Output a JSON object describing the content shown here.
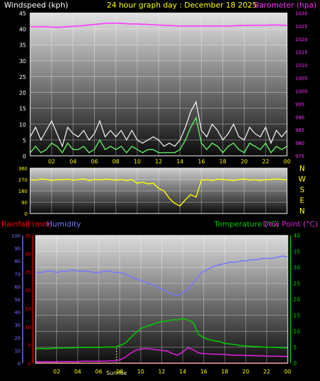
{
  "header": {
    "left": "Windspeed (kph)",
    "center": "24 hour graph day : December 18 2025",
    "right": "Barometer (hpa)"
  },
  "colors": {
    "background": "#000000",
    "frame": "#ffffff",
    "grid": "#ffffff",
    "wind_label": "#ffffff",
    "title": "#ffff00",
    "barometer": "#ff33ff",
    "wind_gust": "#ffffff",
    "wind_avg": "#66ee66",
    "direction": "#ffff00",
    "rain": "#ff0000",
    "humidity": "#7777ff",
    "temperature": "#00cc00",
    "dewpoint": "#dd22dd",
    "sunrise": "#ffff88"
  },
  "chart_data": [
    {
      "type": "line",
      "id": "wind-barometer",
      "title": "24 hour graph day : December 18 2025",
      "ylabel": "Windspeed (kph)",
      "y2label": "Barometer (hpa)",
      "x_ticks": [
        "02",
        "04",
        "06",
        "08",
        "10",
        "12",
        "14",
        "16",
        "18",
        "20",
        "22",
        "00"
      ],
      "ylim": [
        0,
        45
      ],
      "y_ticks": [
        0,
        5,
        10,
        15,
        20,
        25,
        30,
        35,
        40,
        45
      ],
      "y2lim": [
        975,
        1030
      ],
      "y2_ticks": [
        975,
        980,
        985,
        990,
        995,
        1000,
        1005,
        1010,
        1015,
        1020,
        1025,
        1030
      ],
      "x_hours": [
        0,
        0.5,
        1,
        1.5,
        2,
        2.5,
        3,
        3.5,
        4,
        4.5,
        5,
        5.5,
        6,
        6.5,
        7,
        7.5,
        8,
        8.5,
        9,
        9.5,
        10,
        10.5,
        11,
        11.5,
        12,
        12.5,
        13,
        13.5,
        14,
        14.5,
        15,
        15.5,
        16,
        16.5,
        17,
        17.5,
        18,
        18.5,
        19,
        19.5,
        20,
        20.5,
        21,
        21.5,
        22,
        22.5,
        23,
        23.5,
        24
      ],
      "series": [
        {
          "key": "gust",
          "values": [
            6,
            9,
            5,
            8,
            11,
            7,
            3,
            9,
            7,
            6,
            8,
            5,
            7,
            11,
            6,
            8,
            6,
            8,
            5,
            8,
            5,
            4,
            5,
            6,
            5,
            3,
            4,
            3,
            5,
            9,
            14,
            17,
            8,
            6,
            10,
            8,
            5,
            7,
            10,
            6,
            5,
            9,
            7,
            6,
            9,
            4,
            8,
            6,
            8
          ]
        },
        {
          "key": "average",
          "values": [
            1,
            3,
            1,
            2,
            4,
            3,
            1,
            4,
            2,
            2,
            3,
            1,
            2,
            5,
            2,
            3,
            2,
            3,
            1,
            3,
            2,
            1,
            2,
            2,
            1,
            1,
            1,
            1,
            2,
            5,
            9,
            12,
            4,
            2,
            4,
            3,
            1,
            3,
            4,
            2,
            1,
            4,
            3,
            2,
            4,
            1,
            3,
            2,
            3
          ]
        },
        {
          "key": "barometer",
          "axis": "right",
          "values": [
            1024.7,
            1024.7,
            1024.8,
            1024.7,
            1024.6,
            1024.5,
            1024.6,
            1024.8,
            1024.9,
            1025.0,
            1025.2,
            1025.4,
            1025.6,
            1025.8,
            1026.0,
            1026.1,
            1026.1,
            1026.0,
            1025.9,
            1025.8,
            1025.8,
            1025.7,
            1025.6,
            1025.5,
            1025.4,
            1025.3,
            1025.2,
            1025.1,
            1025.0,
            1025.0,
            1025.0,
            1025.0,
            1025.0,
            1025.0,
            1025.0,
            1025.0,
            1025.0,
            1025.0,
            1025.1,
            1025.2,
            1025.2,
            1025.3,
            1025.3,
            1025.3,
            1025.3,
            1025.4,
            1025.4,
            1025.3,
            1025.3
          ]
        }
      ]
    },
    {
      "type": "line",
      "id": "wind-direction",
      "x_ticks": [
        "02",
        "04",
        "06",
        "08",
        "10",
        "12",
        "14",
        "16",
        "18",
        "20",
        "22",
        "00"
      ],
      "ylim": [
        0,
        360
      ],
      "y_ticks": [
        0,
        90,
        180,
        270,
        360
      ],
      "compass_labels": [
        "N",
        "W",
        "S",
        "E",
        "N"
      ],
      "x_hours": [
        0,
        0.5,
        1,
        1.5,
        2,
        2.5,
        3,
        3.5,
        4,
        4.5,
        5,
        5.5,
        6,
        6.5,
        7,
        7.5,
        8,
        8.5,
        9,
        9.5,
        10,
        10.5,
        11,
        11.5,
        12,
        12.5,
        13,
        13.5,
        14,
        14.5,
        15,
        15.5,
        16,
        16.5,
        17,
        17.5,
        18,
        18.5,
        19,
        19.5,
        20,
        20.5,
        21,
        21.5,
        22,
        22.5,
        23,
        23.5,
        24
      ],
      "series": [
        {
          "key": "direction",
          "values": [
            270,
            265,
            275,
            270,
            262,
            270,
            268,
            272,
            265,
            270,
            275,
            262,
            270,
            268,
            272,
            270,
            265,
            270,
            262,
            270,
            240,
            250,
            235,
            240,
            200,
            180,
            120,
            80,
            60,
            110,
            150,
            130,
            265,
            270,
            262,
            272,
            270,
            268,
            262,
            270,
            275,
            265,
            270,
            262,
            268,
            270,
            275,
            270,
            268
          ]
        }
      ]
    },
    {
      "type": "line",
      "id": "temp-humidity",
      "legend": [
        "Rainfall (mm)",
        "Humidity",
        "Temperature (°C)",
        "Dew Point (°C)"
      ],
      "x_ticks": [
        "02",
        "04",
        "06",
        "08",
        "10",
        "12",
        "14",
        "16",
        "18",
        "20",
        "22",
        "00"
      ],
      "sunrise_hour": 7.7,
      "sunrise_label": "Sunrise",
      "humidity_axis": {
        "lim": [
          0,
          100
        ],
        "ticks": [
          0,
          10,
          20,
          30,
          40,
          50,
          60,
          70,
          80,
          90,
          100
        ]
      },
      "rain_axis": {
        "lim": [
          0,
          35
        ],
        "ticks": [
          0,
          5,
          10,
          15,
          20,
          25,
          30,
          35
        ]
      },
      "temp_axis": {
        "lim": [
          0,
          40
        ],
        "ticks": [
          0,
          5,
          10,
          15,
          20,
          25,
          30,
          35,
          40
        ]
      },
      "x_hours": [
        0,
        0.5,
        1,
        1.5,
        2,
        2.5,
        3,
        3.5,
        4,
        4.5,
        5,
        5.5,
        6,
        6.5,
        7,
        7.5,
        8,
        8.5,
        9,
        9.5,
        10,
        10.5,
        11,
        11.5,
        12,
        12.5,
        13,
        13.5,
        14,
        14.5,
        15,
        15.5,
        16,
        16.5,
        17,
        17.5,
        18,
        18.5,
        19,
        19.5,
        20,
        20.5,
        21,
        21.5,
        22,
        22.5,
        23,
        23.5,
        24
      ],
      "series": [
        {
          "key": "humidity",
          "values": [
            71,
            71,
            72,
            72,
            71,
            72,
            72,
            73,
            72,
            72,
            72,
            71,
            71,
            72,
            72,
            71,
            71,
            70,
            68,
            66,
            65,
            63,
            62,
            60,
            58,
            56,
            54,
            53,
            55,
            58,
            63,
            68,
            72,
            74,
            76,
            77,
            78,
            79,
            79,
            80,
            80,
            81,
            81,
            82,
            82,
            82,
            83,
            84,
            83
          ]
        },
        {
          "key": "rainfall",
          "values": [
            0,
            0,
            0,
            0,
            0,
            0,
            0,
            0,
            0,
            0,
            0,
            0,
            0,
            0,
            0,
            0,
            0,
            0,
            0,
            0,
            0,
            0,
            0,
            0,
            0,
            0,
            0,
            0,
            0,
            0,
            0,
            0,
            0,
            0,
            0,
            0,
            0,
            0,
            0,
            0,
            0,
            0,
            0,
            0,
            0,
            0,
            0,
            0,
            0
          ]
        },
        {
          "key": "temperature",
          "values": [
            4.5,
            4.6,
            4.5,
            4.6,
            4.7,
            4.7,
            4.8,
            4.8,
            4.9,
            4.9,
            5.0,
            4.9,
            5.0,
            5.0,
            5.1,
            5.0,
            5.5,
            6.2,
            7.8,
            9.5,
            10.8,
            11.5,
            12.0,
            12.6,
            13.0,
            13.2,
            13.6,
            13.5,
            14.0,
            13.5,
            12.8,
            9.0,
            8.0,
            7.4,
            7.0,
            6.8,
            6.2,
            6.0,
            5.8,
            5.5,
            5.4,
            5.3,
            5.2,
            5.1,
            5.0,
            5.0,
            4.9,
            4.8,
            4.8
          ]
        },
        {
          "key": "dewpoint",
          "values": [
            0.4,
            0.4,
            0.5,
            0.4,
            0.5,
            0.5,
            0.5,
            0.5,
            0.5,
            0.6,
            0.6,
            0.6,
            0.6,
            0.6,
            0.7,
            0.7,
            1.0,
            1.8,
            3.0,
            4.0,
            4.4,
            4.6,
            4.4,
            4.2,
            4.0,
            3.8,
            3.0,
            2.5,
            3.5,
            4.8,
            4.2,
            3.2,
            3.0,
            2.9,
            2.8,
            2.8,
            2.7,
            2.6,
            2.5,
            2.5,
            2.4,
            2.4,
            2.3,
            2.3,
            2.2,
            2.2,
            2.2,
            2.1,
            2.1
          ]
        }
      ]
    }
  ]
}
